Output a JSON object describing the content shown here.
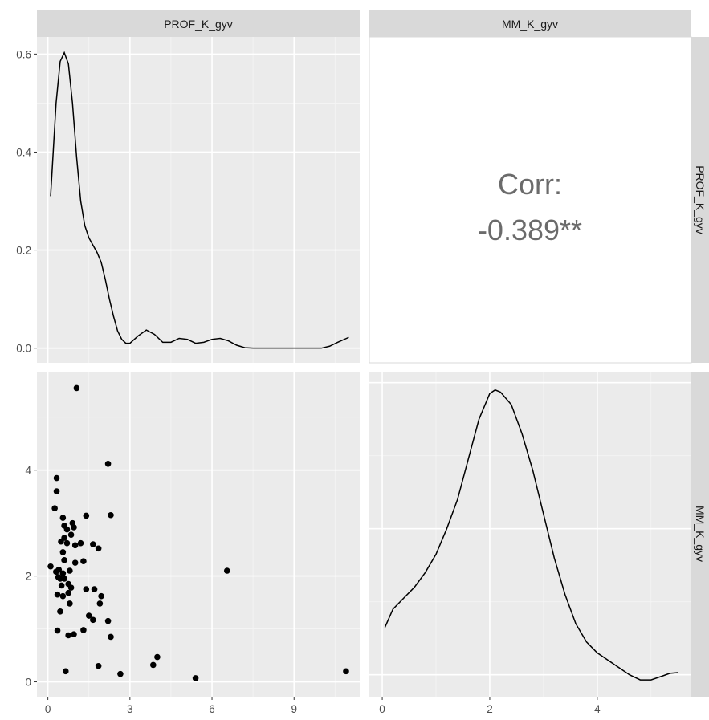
{
  "chart_data": {
    "type": "scatterplot-matrix",
    "variables": [
      "PROF_K_gyv",
      "MM_K_gyv"
    ],
    "panels": [
      {
        "id": "density-prof",
        "type": "line",
        "row": 0,
        "col": 0,
        "xlim": [
          -0.4,
          11.4
        ],
        "ylim": [
          -0.03,
          0.635
        ],
        "y_ticks": [
          0.0,
          0.2,
          0.4,
          0.6
        ],
        "y_tick_labels": [
          "0.0",
          "0.2",
          "0.4",
          "0.6"
        ],
        "x": [
          0.1,
          0.3,
          0.45,
          0.6,
          0.75,
          0.9,
          1.05,
          1.2,
          1.35,
          1.5,
          1.65,
          1.8,
          1.95,
          2.1,
          2.25,
          2.4,
          2.55,
          2.7,
          2.85,
          3.0,
          3.3,
          3.6,
          3.9,
          4.2,
          4.5,
          4.8,
          5.1,
          5.4,
          5.7,
          6.0,
          6.3,
          6.6,
          6.9,
          7.2,
          7.5,
          8.0,
          9.0,
          10.0,
          10.3,
          10.6,
          11.0
        ],
        "y": [
          0.31,
          0.5,
          0.585,
          0.603,
          0.58,
          0.5,
          0.39,
          0.3,
          0.25,
          0.225,
          0.21,
          0.195,
          0.175,
          0.14,
          0.1,
          0.065,
          0.035,
          0.018,
          0.01,
          0.01,
          0.025,
          0.037,
          0.028,
          0.012,
          0.012,
          0.02,
          0.018,
          0.01,
          0.012,
          0.018,
          0.02,
          0.015,
          0.006,
          0.001,
          0.0,
          0.0,
          0.0,
          0.0,
          0.004,
          0.012,
          0.022
        ]
      },
      {
        "id": "corr",
        "type": "text",
        "row": 0,
        "col": 1,
        "label": "Corr:",
        "value": "-0.389**"
      },
      {
        "id": "scatter",
        "type": "scatter",
        "row": 1,
        "col": 0,
        "xlim": [
          -0.4,
          11.4
        ],
        "ylim": [
          -0.28,
          5.86
        ],
        "x_ticks": [
          0,
          3,
          6,
          9
        ],
        "x_tick_labels": [
          "0",
          "3",
          "6",
          "9"
        ],
        "y_ticks": [
          0,
          2,
          4
        ],
        "y_tick_labels": [
          "0",
          "2",
          "4"
        ],
        "points": [
          [
            1.05,
            5.55
          ],
          [
            2.2,
            4.12
          ],
          [
            0.32,
            3.85
          ],
          [
            0.32,
            3.6
          ],
          [
            0.25,
            3.28
          ],
          [
            1.4,
            3.14
          ],
          [
            2.3,
            3.15
          ],
          [
            0.55,
            3.1
          ],
          [
            0.6,
            2.95
          ],
          [
            0.9,
            3.0
          ],
          [
            0.95,
            2.92
          ],
          [
            0.7,
            2.88
          ],
          [
            0.85,
            2.78
          ],
          [
            0.6,
            2.72
          ],
          [
            0.48,
            2.65
          ],
          [
            0.7,
            2.62
          ],
          [
            1.2,
            2.62
          ],
          [
            1.65,
            2.6
          ],
          [
            1.0,
            2.58
          ],
          [
            1.85,
            2.52
          ],
          [
            0.55,
            2.45
          ],
          [
            0.6,
            2.3
          ],
          [
            1.3,
            2.28
          ],
          [
            1.0,
            2.25
          ],
          [
            0.1,
            2.18
          ],
          [
            0.4,
            2.12
          ],
          [
            0.8,
            2.1
          ],
          [
            0.3,
            2.08
          ],
          [
            0.55,
            2.05
          ],
          [
            6.55,
            2.1
          ],
          [
            0.38,
            1.98
          ],
          [
            0.45,
            1.95
          ],
          [
            0.6,
            1.95
          ],
          [
            0.75,
            1.85
          ],
          [
            0.5,
            1.82
          ],
          [
            0.85,
            1.78
          ],
          [
            1.4,
            1.75
          ],
          [
            1.7,
            1.75
          ],
          [
            0.75,
            1.68
          ],
          [
            0.35,
            1.65
          ],
          [
            0.55,
            1.62
          ],
          [
            1.95,
            1.62
          ],
          [
            0.8,
            1.48
          ],
          [
            1.9,
            1.48
          ],
          [
            0.45,
            1.33
          ],
          [
            1.5,
            1.25
          ],
          [
            1.65,
            1.17
          ],
          [
            2.2,
            1.15
          ],
          [
            1.3,
            0.98
          ],
          [
            0.35,
            0.97
          ],
          [
            0.95,
            0.9
          ],
          [
            0.75,
            0.88
          ],
          [
            2.3,
            0.85
          ],
          [
            4.0,
            0.47
          ],
          [
            3.85,
            0.32
          ],
          [
            1.85,
            0.3
          ],
          [
            0.65,
            0.2
          ],
          [
            10.9,
            0.2
          ],
          [
            2.65,
            0.15
          ],
          [
            5.4,
            0.07
          ]
        ]
      },
      {
        "id": "density-mm",
        "type": "line",
        "row": 1,
        "col": 1,
        "xlim": [
          -0.24,
          5.75
        ],
        "ylim": [
          0.12,
          0.565
        ],
        "x_ticks": [
          0,
          2,
          4
        ],
        "x_tick_labels": [
          "0",
          "2",
          "4"
        ],
        "x": [
          0.05,
          0.2,
          0.4,
          0.6,
          0.8,
          1.0,
          1.2,
          1.4,
          1.6,
          1.8,
          2.0,
          2.1,
          2.2,
          2.4,
          2.6,
          2.8,
          3.0,
          3.2,
          3.4,
          3.6,
          3.8,
          4.0,
          4.2,
          4.4,
          4.6,
          4.8,
          5.0,
          5.2,
          5.35,
          5.5
        ],
        "y": [
          0.215,
          0.24,
          0.255,
          0.27,
          0.29,
          0.315,
          0.35,
          0.39,
          0.445,
          0.5,
          0.535,
          0.54,
          0.537,
          0.52,
          0.48,
          0.43,
          0.37,
          0.31,
          0.26,
          0.22,
          0.195,
          0.18,
          0.17,
          0.16,
          0.15,
          0.143,
          0.143,
          0.148,
          0.152,
          0.153
        ]
      }
    ]
  }
}
